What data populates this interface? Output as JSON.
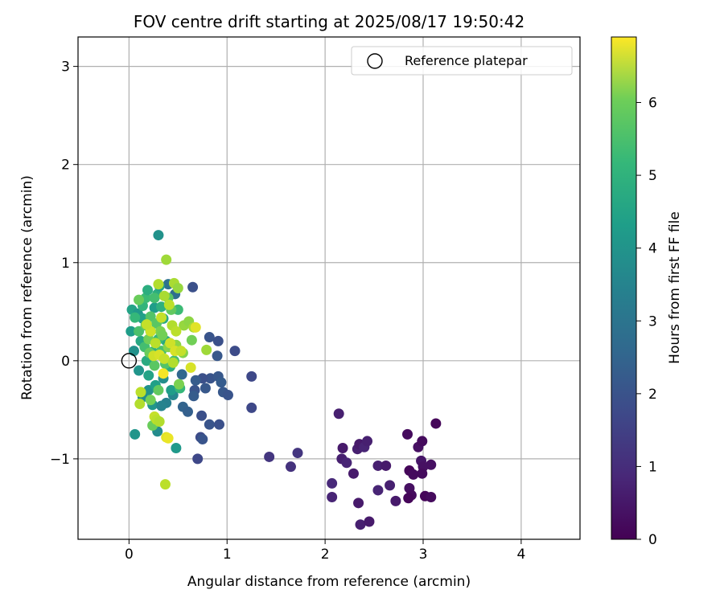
{
  "chart_data": {
    "type": "scatter",
    "title": "FOV centre drift starting at 2025/08/17 19:50:42",
    "xlabel": "Angular distance from reference (arcmin)",
    "ylabel": "Rotation from reference (arcmin)",
    "xlim": [
      -0.52,
      4.6
    ],
    "ylim": [
      -1.82,
      3.3
    ],
    "x_ticks": [
      0,
      1,
      2,
      3,
      4
    ],
    "y_ticks": [
      -1,
      0,
      1,
      2,
      3
    ],
    "x_tick_labels": [
      "0",
      "1",
      "2",
      "3",
      "4"
    ],
    "y_tick_labels": [
      "−1",
      "0",
      "1",
      "2",
      "3"
    ],
    "grid": true,
    "legend": {
      "location": "top-right",
      "entries": [
        {
          "label": "Reference platepar",
          "marker": "open-circle"
        }
      ]
    },
    "colorbar": {
      "label": "Hours from first FF file",
      "colormap": "viridis",
      "range": [
        0,
        6.9
      ],
      "ticks": [
        0,
        1,
        2,
        3,
        4,
        5,
        6
      ],
      "tick_labels": [
        "0",
        "1",
        "2",
        "3",
        "4",
        "5",
        "6"
      ]
    },
    "reference_point": {
      "x": 0,
      "y": 0
    },
    "points": [
      {
        "x": 2.14,
        "y": -0.54,
        "c": 0.6
      },
      {
        "x": 2.18,
        "y": -0.89,
        "c": 0.5
      },
      {
        "x": 2.17,
        "y": -1.0,
        "c": 0.6
      },
      {
        "x": 2.22,
        "y": -1.04,
        "c": 0.7
      },
      {
        "x": 2.29,
        "y": -1.15,
        "c": 0.5
      },
      {
        "x": 2.07,
        "y": -1.25,
        "c": 0.8
      },
      {
        "x": 2.07,
        "y": -1.39,
        "c": 0.7
      },
      {
        "x": 2.33,
        "y": -0.9,
        "c": 0.6
      },
      {
        "x": 2.35,
        "y": -0.85,
        "c": 0.5
      },
      {
        "x": 2.4,
        "y": -0.88,
        "c": 0.7
      },
      {
        "x": 2.43,
        "y": -0.82,
        "c": 0.6
      },
      {
        "x": 2.34,
        "y": -1.45,
        "c": 0.5
      },
      {
        "x": 2.36,
        "y": -1.67,
        "c": 0.6
      },
      {
        "x": 2.45,
        "y": -1.64,
        "c": 0.5
      },
      {
        "x": 2.54,
        "y": -1.07,
        "c": 0.6
      },
      {
        "x": 2.54,
        "y": -1.32,
        "c": 0.7
      },
      {
        "x": 2.62,
        "y": -1.07,
        "c": 0.5
      },
      {
        "x": 2.66,
        "y": -1.27,
        "c": 0.6
      },
      {
        "x": 2.72,
        "y": -1.43,
        "c": 0.5
      },
      {
        "x": 2.84,
        "y": -0.75,
        "c": 0.2
      },
      {
        "x": 2.86,
        "y": -1.12,
        "c": 0.1
      },
      {
        "x": 2.9,
        "y": -1.16,
        "c": 0.2
      },
      {
        "x": 2.86,
        "y": -1.3,
        "c": 0.3
      },
      {
        "x": 2.88,
        "y": -1.37,
        "c": 0.2
      },
      {
        "x": 2.85,
        "y": -1.4,
        "c": 0.1
      },
      {
        "x": 2.95,
        "y": -0.88,
        "c": 0.3
      },
      {
        "x": 2.99,
        "y": -0.82,
        "c": 0.2
      },
      {
        "x": 2.98,
        "y": -1.02,
        "c": 0.4
      },
      {
        "x": 3.0,
        "y": -1.08,
        "c": 0.3
      },
      {
        "x": 2.99,
        "y": -1.15,
        "c": 0.2
      },
      {
        "x": 3.02,
        "y": -1.38,
        "c": 0.1
      },
      {
        "x": 3.08,
        "y": -1.39,
        "c": 0.2
      },
      {
        "x": 3.08,
        "y": -1.06,
        "c": 0.3
      },
      {
        "x": 3.13,
        "y": -0.64,
        "c": 0.1
      },
      {
        "x": 1.43,
        "y": -0.98,
        "c": 1.1
      },
      {
        "x": 1.65,
        "y": -1.08,
        "c": 1.0
      },
      {
        "x": 1.72,
        "y": -0.94,
        "c": 1.1
      },
      {
        "x": 1.08,
        "y": 0.1,
        "c": 1.6
      },
      {
        "x": 1.25,
        "y": -0.16,
        "c": 1.5
      },
      {
        "x": 1.25,
        "y": -0.48,
        "c": 1.5
      },
      {
        "x": 0.65,
        "y": 0.75,
        "c": 1.7
      },
      {
        "x": 0.82,
        "y": 0.24,
        "c": 1.8
      },
      {
        "x": 0.91,
        "y": 0.2,
        "c": 1.7
      },
      {
        "x": 0.9,
        "y": 0.05,
        "c": 1.9
      },
      {
        "x": 0.83,
        "y": -0.18,
        "c": 1.8
      },
      {
        "x": 0.91,
        "y": -0.16,
        "c": 1.9
      },
      {
        "x": 0.94,
        "y": -0.22,
        "c": 2.0
      },
      {
        "x": 0.96,
        "y": -0.32,
        "c": 1.9
      },
      {
        "x": 1.01,
        "y": -0.35,
        "c": 1.8
      },
      {
        "x": 0.75,
        "y": -0.18,
        "c": 1.7
      },
      {
        "x": 0.78,
        "y": -0.28,
        "c": 1.9
      },
      {
        "x": 0.68,
        "y": -0.2,
        "c": 2.0
      },
      {
        "x": 0.67,
        "y": -0.3,
        "c": 1.8
      },
      {
        "x": 0.66,
        "y": -0.36,
        "c": 2.0
      },
      {
        "x": 0.74,
        "y": -0.56,
        "c": 1.7
      },
      {
        "x": 0.82,
        "y": -0.65,
        "c": 1.8
      },
      {
        "x": 0.92,
        "y": -0.65,
        "c": 1.7
      },
      {
        "x": 0.73,
        "y": -0.78,
        "c": 1.6
      },
      {
        "x": 0.75,
        "y": -0.8,
        "c": 1.8
      },
      {
        "x": 0.7,
        "y": -1.0,
        "c": 1.5
      },
      {
        "x": 0.55,
        "y": -0.47,
        "c": 2.2
      },
      {
        "x": 0.6,
        "y": -0.52,
        "c": 2.1
      },
      {
        "x": 0.54,
        "y": -0.14,
        "c": 2.3
      },
      {
        "x": 0.47,
        "y": 0.68,
        "c": 2.5
      },
      {
        "x": 0.4,
        "y": 0.78,
        "c": 2.6
      },
      {
        "x": 0.3,
        "y": 1.28,
        "c": 3.5
      },
      {
        "x": 0.06,
        "y": -0.75,
        "c": 3.6
      },
      {
        "x": 0.48,
        "y": -0.89,
        "c": 3.7
      },
      {
        "x": 0.29,
        "y": -0.72,
        "c": 3.3
      },
      {
        "x": 0.38,
        "y": -0.43,
        "c": 3.0
      },
      {
        "x": 0.45,
        "y": -0.35,
        "c": 3.2
      },
      {
        "x": 0.14,
        "y": -0.37,
        "c": 3.4
      },
      {
        "x": 0.24,
        "y": -0.45,
        "c": 3.6
      },
      {
        "x": 0.33,
        "y": -0.46,
        "c": 3.1
      },
      {
        "x": 0.2,
        "y": -0.3,
        "c": 3.5
      },
      {
        "x": 0.27,
        "y": -0.25,
        "c": 3.9
      },
      {
        "x": 0.43,
        "y": -0.3,
        "c": 3.8
      },
      {
        "x": 0.35,
        "y": -0.18,
        "c": 3.4
      },
      {
        "x": 0.1,
        "y": -0.1,
        "c": 3.6
      },
      {
        "x": 0.05,
        "y": 0.1,
        "c": 3.5
      },
      {
        "x": 0.02,
        "y": 0.3,
        "c": 3.8
      },
      {
        "x": 0.03,
        "y": 0.52,
        "c": 4.0
      },
      {
        "x": 0.09,
        "y": 0.48,
        "c": 3.7
      },
      {
        "x": 0.14,
        "y": 0.43,
        "c": 3.9
      },
      {
        "x": 0.12,
        "y": 0.2,
        "c": 4.1
      },
      {
        "x": 0.18,
        "y": 0.0,
        "c": 4.2
      },
      {
        "x": 0.22,
        "y": 0.3,
        "c": 4.0
      },
      {
        "x": 0.26,
        "y": 0.54,
        "c": 3.8
      },
      {
        "x": 0.29,
        "y": 0.68,
        "c": 4.3
      },
      {
        "x": 0.31,
        "y": 0.76,
        "c": 4.0
      },
      {
        "x": 0.33,
        "y": 0.55,
        "c": 4.4
      },
      {
        "x": 0.35,
        "y": 0.43,
        "c": 4.2
      },
      {
        "x": 0.38,
        "y": 0.2,
        "c": 4.1
      },
      {
        "x": 0.42,
        "y": -0.06,
        "c": 4.3
      },
      {
        "x": 0.2,
        "y": -0.15,
        "c": 4.0
      },
      {
        "x": 0.24,
        "y": 0.09,
        "c": 4.4
      },
      {
        "x": 0.3,
        "y": 0.22,
        "c": 4.6
      },
      {
        "x": 0.14,
        "y": 0.56,
        "c": 4.5
      },
      {
        "x": 0.17,
        "y": 0.64,
        "c": 4.7
      },
      {
        "x": 0.19,
        "y": 0.72,
        "c": 4.3
      },
      {
        "x": 0.26,
        "y": 0.64,
        "c": 4.8
      },
      {
        "x": 0.06,
        "y": 0.44,
        "c": 4.6
      },
      {
        "x": 0.1,
        "y": 0.3,
        "c": 4.9
      },
      {
        "x": 0.16,
        "y": 0.14,
        "c": 4.8
      },
      {
        "x": 0.22,
        "y": 0.45,
        "c": 5.0
      },
      {
        "x": 0.28,
        "y": 0.38,
        "c": 5.1
      },
      {
        "x": 0.33,
        "y": 0.1,
        "c": 4.9
      },
      {
        "x": 0.37,
        "y": -0.03,
        "c": 5.0
      },
      {
        "x": 0.46,
        "y": 0.0,
        "c": 4.8
      },
      {
        "x": 0.5,
        "y": 0.52,
        "c": 4.7
      },
      {
        "x": 0.52,
        "y": -0.28,
        "c": 4.6
      },
      {
        "x": 0.43,
        "y": 0.52,
        "c": 5.2
      },
      {
        "x": 0.4,
        "y": 0.64,
        "c": 5.1
      },
      {
        "x": 0.1,
        "y": 0.62,
        "c": 5.3
      },
      {
        "x": 0.17,
        "y": 0.36,
        "c": 5.2
      },
      {
        "x": 0.2,
        "y": 0.22,
        "c": 5.4
      },
      {
        "x": 0.21,
        "y": 0.08,
        "c": 5.3
      },
      {
        "x": 0.26,
        "y": -0.05,
        "c": 5.1
      },
      {
        "x": 0.3,
        "y": -0.3,
        "c": 5.2
      },
      {
        "x": 0.22,
        "y": -0.4,
        "c": 5.4
      },
      {
        "x": 0.24,
        "y": -0.66,
        "c": 5.3
      },
      {
        "x": 0.32,
        "y": 0.3,
        "c": 5.5
      },
      {
        "x": 0.34,
        "y": 0.26,
        "c": 5.4
      },
      {
        "x": 0.4,
        "y": 0.14,
        "c": 5.6
      },
      {
        "x": 0.44,
        "y": 0.14,
        "c": 5.5
      },
      {
        "x": 0.48,
        "y": 0.16,
        "c": 5.7
      },
      {
        "x": 0.51,
        "y": -0.24,
        "c": 5.5
      },
      {
        "x": 0.55,
        "y": 0.08,
        "c": 5.6
      },
      {
        "x": 0.56,
        "y": 0.36,
        "c": 5.8
      },
      {
        "x": 0.61,
        "y": 0.4,
        "c": 5.7
      },
      {
        "x": 0.64,
        "y": 0.21,
        "c": 5.4
      },
      {
        "x": 0.66,
        "y": 0.34,
        "c": 6.0
      },
      {
        "x": 0.79,
        "y": 0.11,
        "c": 5.9
      },
      {
        "x": 0.46,
        "y": 0.79,
        "c": 6.0
      },
      {
        "x": 0.5,
        "y": 0.74,
        "c": 5.8
      },
      {
        "x": 0.3,
        "y": 0.78,
        "c": 6.1
      },
      {
        "x": 0.36,
        "y": 0.66,
        "c": 6.0
      },
      {
        "x": 0.41,
        "y": 0.57,
        "c": 6.2
      },
      {
        "x": 0.44,
        "y": 0.36,
        "c": 6.1
      },
      {
        "x": 0.38,
        "y": 1.03,
        "c": 5.9
      },
      {
        "x": 0.33,
        "y": 0.44,
        "c": 6.3
      },
      {
        "x": 0.27,
        "y": 0.18,
        "c": 6.2
      },
      {
        "x": 0.22,
        "y": 0.3,
        "c": 6.4
      },
      {
        "x": 0.18,
        "y": 0.37,
        "c": 6.3
      },
      {
        "x": 0.12,
        "y": -0.32,
        "c": 6.2
      },
      {
        "x": 0.11,
        "y": -0.44,
        "c": 6.1
      },
      {
        "x": 0.26,
        "y": -0.57,
        "c": 6.3
      },
      {
        "x": 0.28,
        "y": -0.6,
        "c": 6.2
      },
      {
        "x": 0.31,
        "y": -0.62,
        "c": 6.1
      },
      {
        "x": 0.38,
        "y": -0.78,
        "c": 6.6
      },
      {
        "x": 0.4,
        "y": -0.79,
        "c": 6.7
      },
      {
        "x": 0.37,
        "y": -1.26,
        "c": 6.2
      },
      {
        "x": 0.35,
        "y": -0.13,
        "c": 6.8
      },
      {
        "x": 0.25,
        "y": 0.05,
        "c": 6.4
      },
      {
        "x": 0.31,
        "y": 0.06,
        "c": 6.5
      },
      {
        "x": 0.36,
        "y": 0.02,
        "c": 6.3
      },
      {
        "x": 0.42,
        "y": 0.18,
        "c": 6.4
      },
      {
        "x": 0.47,
        "y": 0.1,
        "c": 6.5
      },
      {
        "x": 0.53,
        "y": 0.1,
        "c": 6.3
      },
      {
        "x": 0.48,
        "y": 0.3,
        "c": 6.2
      },
      {
        "x": 0.68,
        "y": 0.34,
        "c": 6.6
      },
      {
        "x": 0.63,
        "y": -0.07,
        "c": 6.5
      },
      {
        "x": 0.45,
        "y": -0.02,
        "c": 6.1
      }
    ]
  }
}
